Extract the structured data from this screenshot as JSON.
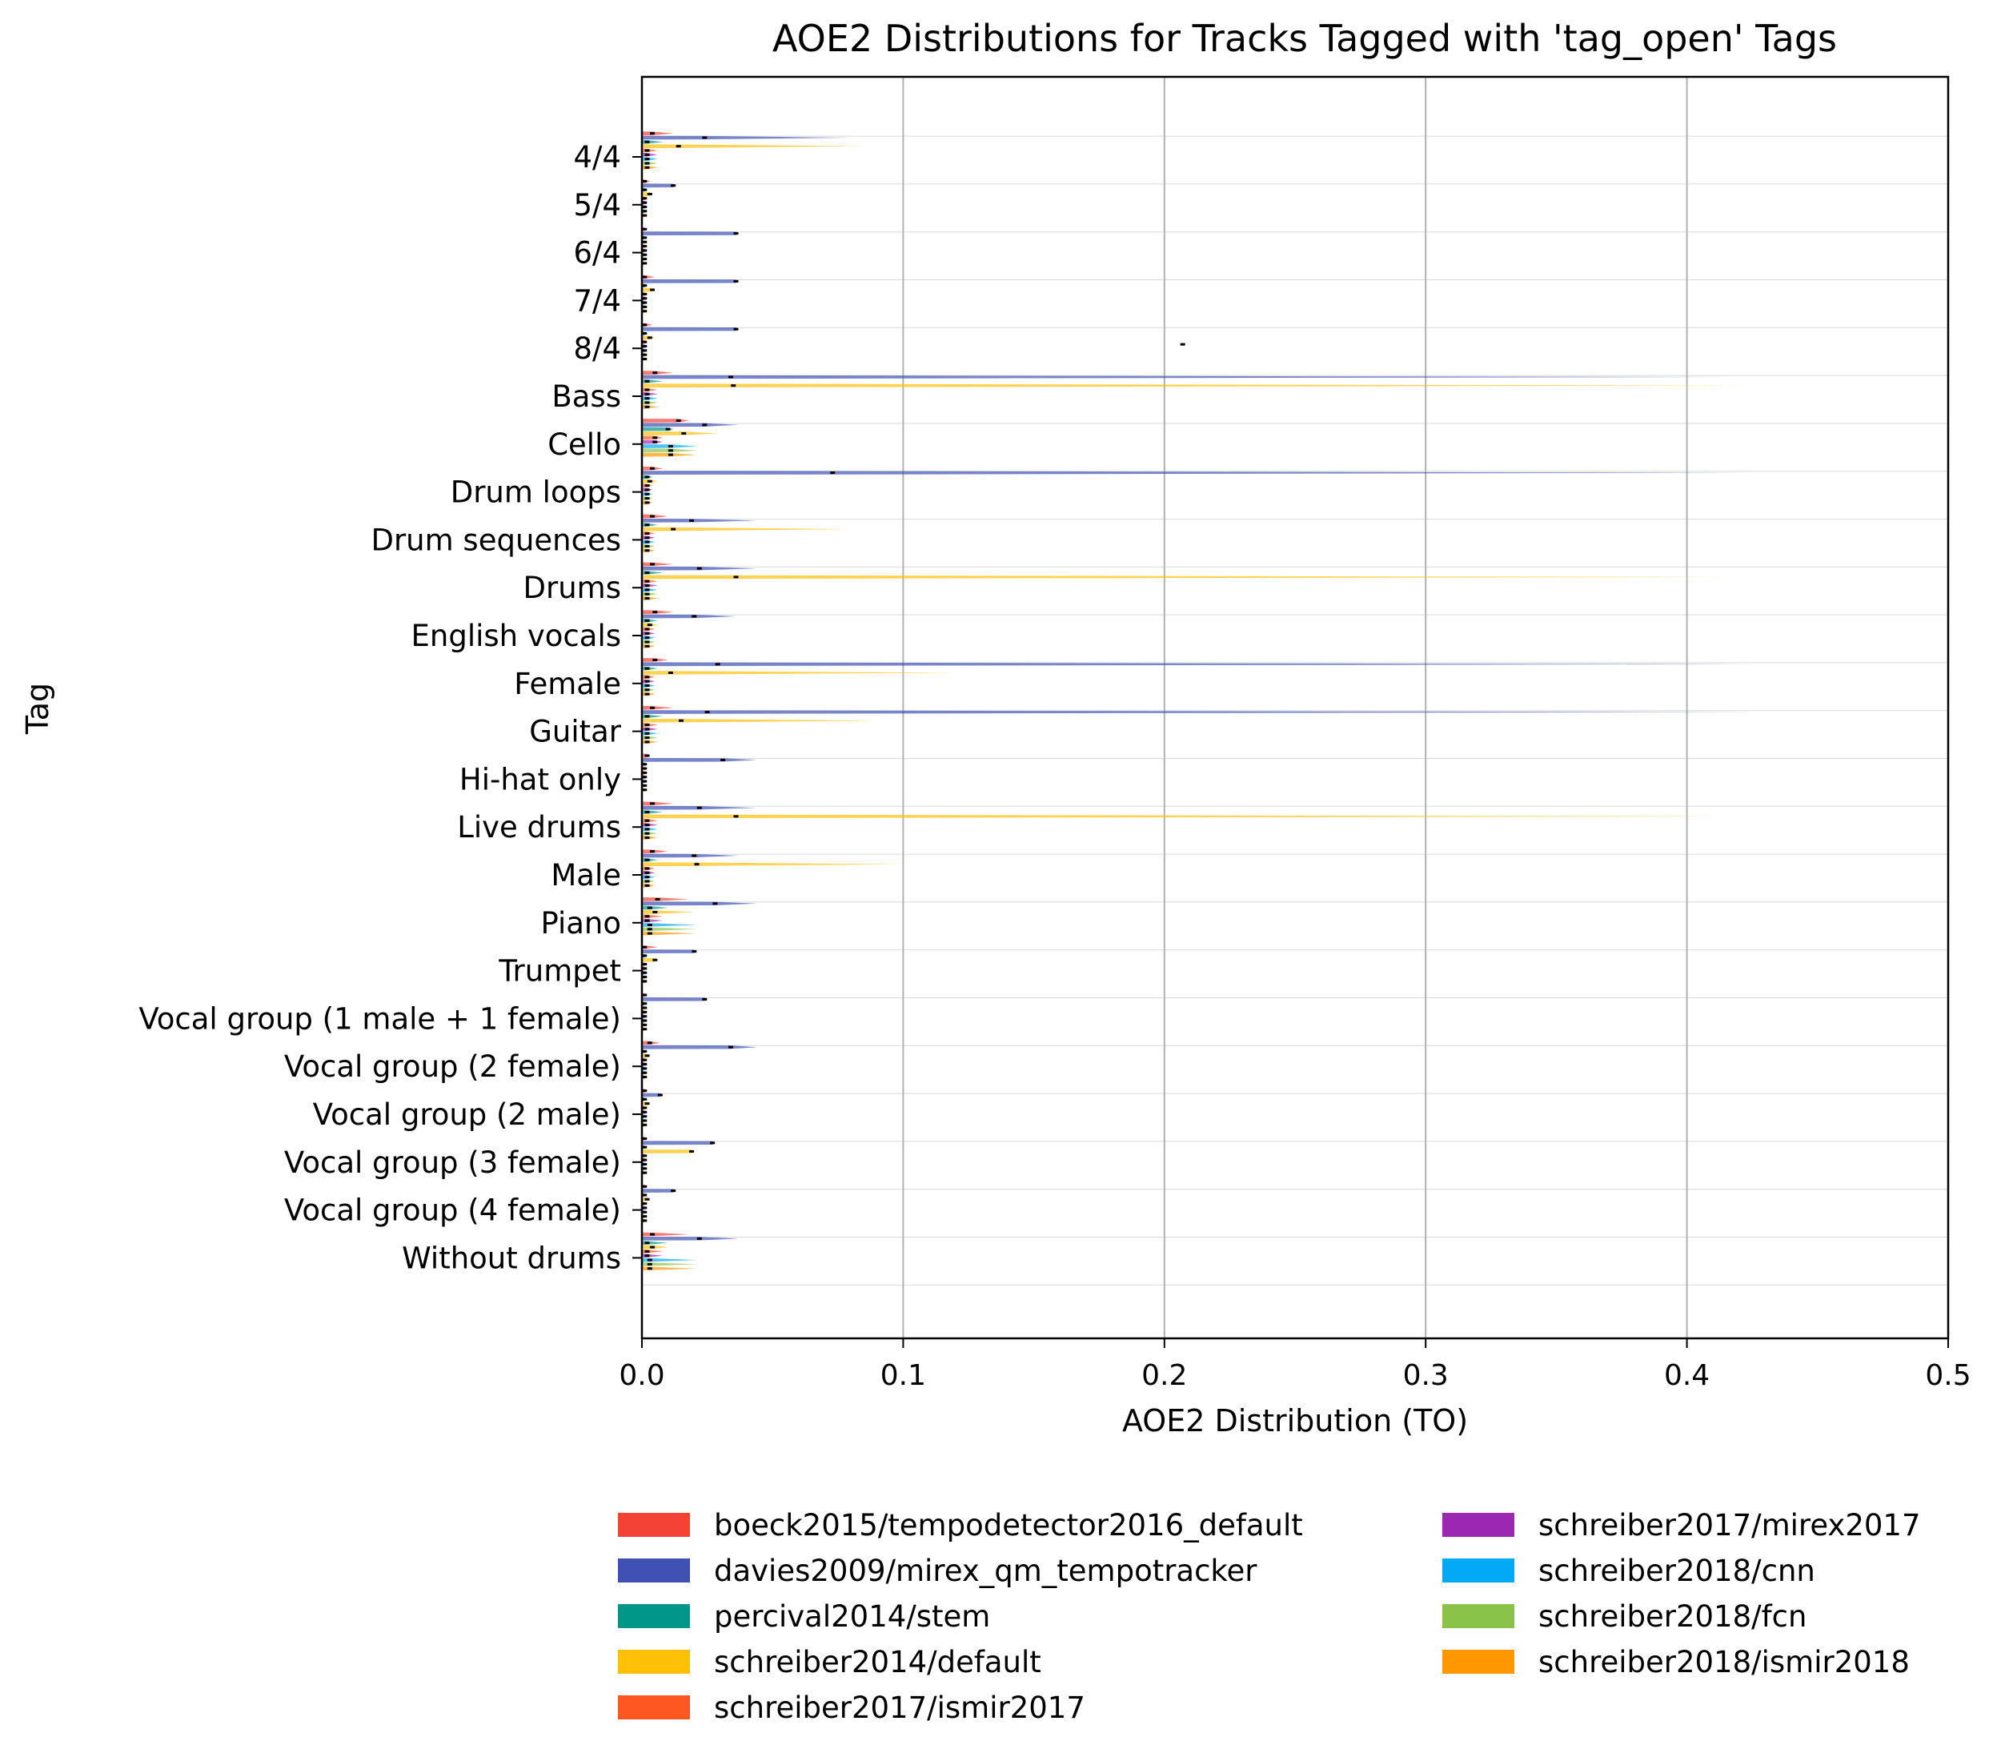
{
  "chart_data": {
    "type": "violin",
    "orientation": "horizontal",
    "title": "AOE2 Distributions for Tracks Tagged with 'tag_open' Tags",
    "xlabel": "AOE2 Distribution (TO)",
    "ylabel": "Tag",
    "xlim": [
      0.0,
      0.5
    ],
    "xticks": [
      "0.0",
      "0.1",
      "0.2",
      "0.3",
      "0.4",
      "0.5"
    ],
    "grid": "x-major",
    "legend_position": "bottom",
    "categories": [
      "4/4",
      "5/4",
      "6/4",
      "7/4",
      "8/4",
      "Bass",
      "Cello",
      "Drum loops",
      "Drum sequences",
      "Drums",
      "English vocals",
      "Female",
      "Guitar",
      "Hi-hat only",
      "Live drums",
      "Male",
      "Piano",
      "Trumpet",
      "Vocal group (1 male + 1 female)",
      "Vocal group (2 female)",
      "Vocal group (2 male)",
      "Vocal group (3 female)",
      "Vocal group (4 female)",
      "Without drums"
    ],
    "series": [
      {
        "name": "boeck2015/tempodetector2016_default",
        "color": "#f44336",
        "median": [
          0.004,
          0.001,
          0.001,
          0.001,
          0.001,
          0.005,
          0.014,
          0.004,
          0.004,
          0.004,
          0.005,
          0.005,
          0.004,
          0.002,
          0.004,
          0.004,
          0.006,
          0.001,
          0.001,
          0.003,
          0.001,
          0.001,
          0.001,
          0.004
        ],
        "max": [
          0.012,
          0.003,
          0.002,
          0.005,
          0.004,
          0.012,
          0.018,
          0.008,
          0.01,
          0.012,
          0.012,
          0.01,
          0.012,
          0.003,
          0.012,
          0.01,
          0.018,
          0.006,
          0.002,
          0.007,
          0.002,
          0.002,
          0.002,
          0.018
        ]
      },
      {
        "name": "davies2009/mirex_qm_tempotracker",
        "color": "#3f51b5",
        "median": [
          0.024,
          0.012,
          0.036,
          0.036,
          0.036,
          0.034,
          0.024,
          0.073,
          0.019,
          0.022,
          0.02,
          0.029,
          0.025,
          0.031,
          0.022,
          0.02,
          0.028,
          0.02,
          0.024,
          0.034,
          0.007,
          0.027,
          0.012,
          0.022
        ],
        "max": [
          0.08,
          0.013,
          0.037,
          0.037,
          0.037,
          0.425,
          0.037,
          0.425,
          0.044,
          0.044,
          0.036,
          0.425,
          0.425,
          0.044,
          0.044,
          0.037,
          0.044,
          0.021,
          0.025,
          0.044,
          0.008,
          0.028,
          0.013,
          0.037
        ]
      },
      {
        "name": "percival2014/stem",
        "color": "#009688",
        "median": [
          0.002,
          0.001,
          0.001,
          0.001,
          0.001,
          0.002,
          0.01,
          0.002,
          0.002,
          0.002,
          0.002,
          0.002,
          0.002,
          0.001,
          0.002,
          0.002,
          0.003,
          0.001,
          0.001,
          0.001,
          0.001,
          0.001,
          0.001,
          0.002
        ],
        "max": [
          0.008,
          0.002,
          0.001,
          0.002,
          0.002,
          0.008,
          0.012,
          0.004,
          0.006,
          0.008,
          0.006,
          0.006,
          0.008,
          0.002,
          0.008,
          0.006,
          0.01,
          0.002,
          0.001,
          0.002,
          0.001,
          0.001,
          0.001,
          0.01
        ]
      },
      {
        "name": "schreiber2014/default",
        "color": "#ffc107",
        "median": [
          0.014,
          0.003,
          0.001,
          0.004,
          0.003,
          0.035,
          0.016,
          0.003,
          0.012,
          0.036,
          0.003,
          0.011,
          0.015,
          0.001,
          0.036,
          0.021,
          0.005,
          0.005,
          0.001,
          0.002,
          0.002,
          0.019,
          0.002,
          0.004
        ],
        "max": [
          0.085,
          0.004,
          0.002,
          0.005,
          0.005,
          0.425,
          0.029,
          0.006,
          0.08,
          0.415,
          0.006,
          0.12,
          0.09,
          0.002,
          0.415,
          0.1,
          0.02,
          0.006,
          0.002,
          0.003,
          0.003,
          0.02,
          0.003,
          0.01
        ]
      },
      {
        "name": "schreiber2017/ismir2017",
        "color": "#ff5722",
        "median": [
          0.002,
          0.001,
          0.001,
          0.001,
          0.001,
          0.002,
          0.005,
          0.002,
          0.002,
          0.002,
          0.002,
          0.002,
          0.002,
          0.001,
          0.002,
          0.002,
          0.002,
          0.001,
          0.001,
          0.001,
          0.001,
          0.001,
          0.001,
          0.002
        ],
        "max": [
          0.006,
          0.002,
          0.001,
          0.002,
          0.002,
          0.006,
          0.008,
          0.004,
          0.005,
          0.006,
          0.005,
          0.005,
          0.006,
          0.002,
          0.006,
          0.005,
          0.008,
          0.002,
          0.001,
          0.002,
          0.001,
          0.001,
          0.001,
          0.008
        ]
      },
      {
        "name": "schreiber2017/mirex2017",
        "color": "#9c27b0",
        "median": [
          0.002,
          0.001,
          0.001,
          0.001,
          0.001,
          0.002,
          0.005,
          0.002,
          0.002,
          0.002,
          0.002,
          0.002,
          0.002,
          0.001,
          0.002,
          0.002,
          0.002,
          0.001,
          0.001,
          0.001,
          0.001,
          0.001,
          0.001,
          0.002
        ],
        "max": [
          0.006,
          0.002,
          0.001,
          0.002,
          0.002,
          0.006,
          0.008,
          0.004,
          0.005,
          0.006,
          0.005,
          0.005,
          0.006,
          0.002,
          0.006,
          0.005,
          0.008,
          0.002,
          0.001,
          0.002,
          0.001,
          0.001,
          0.001,
          0.008
        ]
      },
      {
        "name": "schreiber2018/cnn",
        "color": "#03a9f4",
        "median": [
          0.002,
          0.001,
          0.001,
          0.001,
          0.001,
          0.002,
          0.011,
          0.002,
          0.002,
          0.002,
          0.002,
          0.002,
          0.002,
          0.001,
          0.002,
          0.002,
          0.003,
          0.001,
          0.001,
          0.001,
          0.001,
          0.001,
          0.001,
          0.003
        ],
        "max": [
          0.006,
          0.002,
          0.001,
          0.002,
          0.002,
          0.006,
          0.021,
          0.004,
          0.005,
          0.006,
          0.005,
          0.005,
          0.006,
          0.002,
          0.006,
          0.005,
          0.021,
          0.002,
          0.001,
          0.002,
          0.001,
          0.001,
          0.001,
          0.021
        ]
      },
      {
        "name": "schreiber2018/fcn",
        "color": "#8bc34a",
        "median": [
          0.002,
          0.001,
          0.001,
          0.001,
          0.001,
          0.002,
          0.011,
          0.002,
          0.002,
          0.002,
          0.002,
          0.002,
          0.002,
          0.001,
          0.002,
          0.002,
          0.003,
          0.001,
          0.001,
          0.001,
          0.001,
          0.001,
          0.001,
          0.003
        ],
        "max": [
          0.006,
          0.002,
          0.001,
          0.002,
          0.002,
          0.006,
          0.021,
          0.004,
          0.005,
          0.006,
          0.005,
          0.005,
          0.006,
          0.002,
          0.006,
          0.005,
          0.021,
          0.002,
          0.001,
          0.002,
          0.001,
          0.001,
          0.001,
          0.021
        ]
      },
      {
        "name": "schreiber2018/ismir2018",
        "color": "#ff9800",
        "median": [
          0.002,
          0.001,
          0.001,
          0.001,
          0.001,
          0.002,
          0.011,
          0.002,
          0.002,
          0.002,
          0.002,
          0.002,
          0.002,
          0.001,
          0.002,
          0.002,
          0.003,
          0.001,
          0.001,
          0.001,
          0.001,
          0.001,
          0.001,
          0.003
        ],
        "max": [
          0.006,
          0.002,
          0.001,
          0.002,
          0.002,
          0.006,
          0.021,
          0.004,
          0.005,
          0.006,
          0.005,
          0.005,
          0.006,
          0.002,
          0.006,
          0.005,
          0.021,
          0.002,
          0.001,
          0.002,
          0.001,
          0.001,
          0.001,
          0.021
        ]
      }
    ],
    "outlier_marks": [
      {
        "category": "8/4",
        "x": 0.207
      }
    ]
  }
}
